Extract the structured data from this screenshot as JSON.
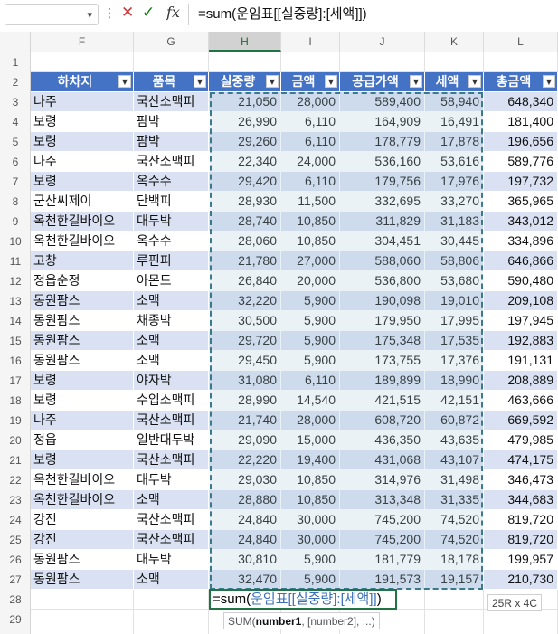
{
  "formula_bar": {
    "namebox_value": "",
    "formula": "=sum(운임표[[실중량]:[세액]])",
    "cancel_icon": "✕",
    "enter_icon": "✓",
    "fx_label": "fx",
    "dots": "⋮"
  },
  "columns": [
    "F",
    "G",
    "H",
    "I",
    "J",
    "K",
    "L"
  ],
  "rows": [
    "1",
    "2",
    "3",
    "4",
    "5",
    "6",
    "7",
    "8",
    "9",
    "10",
    "11",
    "12",
    "13",
    "14",
    "15",
    "16",
    "17",
    "18",
    "19",
    "20",
    "21",
    "22",
    "23",
    "24",
    "25",
    "26",
    "27",
    "28",
    "29"
  ],
  "table": {
    "name": "운임표",
    "headers": [
      "하차지",
      "품목",
      "실중량",
      "금액",
      "공급가액",
      "세액",
      "총금액"
    ],
    "rows": [
      [
        "나주",
        "국산소맥피",
        "21,050",
        "28,000",
        "589,400",
        "58,940",
        "648,340"
      ],
      [
        "보령",
        "팜박",
        "26,990",
        "6,110",
        "164,909",
        "16,491",
        "181,400"
      ],
      [
        "보령",
        "팜박",
        "29,260",
        "6,110",
        "178,779",
        "17,878",
        "196,656"
      ],
      [
        "나주",
        "국산소맥피",
        "22,340",
        "24,000",
        "536,160",
        "53,616",
        "589,776"
      ],
      [
        "보령",
        "옥수수",
        "29,420",
        "6,110",
        "179,756",
        "17,976",
        "197,732"
      ],
      [
        "군산씨제이",
        "단백피",
        "28,930",
        "11,500",
        "332,695",
        "33,270",
        "365,965"
      ],
      [
        "옥천한길바이오",
        "대두박",
        "28,740",
        "10,850",
        "311,829",
        "31,183",
        "343,012"
      ],
      [
        "옥천한길바이오",
        "옥수수",
        "28,060",
        "10,850",
        "304,451",
        "30,445",
        "334,896"
      ],
      [
        "고창",
        "루핀피",
        "21,780",
        "27,000",
        "588,060",
        "58,806",
        "646,866"
      ],
      [
        "정읍순정",
        "아몬드",
        "26,840",
        "20,000",
        "536,800",
        "53,680",
        "590,480"
      ],
      [
        "동원팜스",
        "소맥",
        "32,220",
        "5,900",
        "190,098",
        "19,010",
        "209,108"
      ],
      [
        "동원팜스",
        "채종박",
        "30,500",
        "5,900",
        "179,950",
        "17,995",
        "197,945"
      ],
      [
        "동원팜스",
        "소맥",
        "29,720",
        "5,900",
        "175,348",
        "17,535",
        "192,883"
      ],
      [
        "동원팜스",
        "소맥",
        "29,450",
        "5,900",
        "173,755",
        "17,376",
        "191,131"
      ],
      [
        "보령",
        "야자박",
        "31,080",
        "6,110",
        "189,899",
        "18,990",
        "208,889"
      ],
      [
        "보령",
        "수입소맥피",
        "28,990",
        "14,540",
        "421,515",
        "42,151",
        "463,666"
      ],
      [
        "나주",
        "국산소맥피",
        "21,740",
        "28,000",
        "608,720",
        "60,872",
        "669,592"
      ],
      [
        "정읍",
        "일반대두박",
        "29,090",
        "15,000",
        "436,350",
        "43,635",
        "479,985"
      ],
      [
        "보령",
        "국산소맥피",
        "22,220",
        "19,400",
        "431,068",
        "43,107",
        "474,175"
      ],
      [
        "옥천한길바이오",
        "대두박",
        "29,030",
        "10,850",
        "314,976",
        "31,498",
        "346,473"
      ],
      [
        "옥천한길바이오",
        "소맥",
        "28,880",
        "10,850",
        "313,348",
        "31,335",
        "344,683"
      ],
      [
        "강진",
        "국산소맥피",
        "24,840",
        "30,000",
        "745,200",
        "74,520",
        "819,720"
      ],
      [
        "강진",
        "국산소맥피",
        "24,840",
        "30,000",
        "745,200",
        "74,520",
        "819,720"
      ],
      [
        "동원팜스",
        "대두박",
        "30,810",
        "5,900",
        "181,779",
        "18,178",
        "199,957"
      ],
      [
        "동원팜스",
        "소맥",
        "32,470",
        "5,900",
        "191,573",
        "19,157",
        "210,730"
      ]
    ]
  },
  "edit_cell": {
    "prefix": "=sum(",
    "table_ref": "운임표",
    "range_ref": "[[실중량]:[세액]]",
    "suffix": ")"
  },
  "size_badge": "25R x 4C",
  "tooltip": {
    "fn": "SUM(",
    "arg1": "number1",
    "rest": ", [number2], ...)"
  },
  "colors": {
    "header_bg": "#4472c4",
    "band": "#d9e1f2",
    "edit_border": "#217346",
    "range_border": "#3a7a8c",
    "cancel": "#d13438",
    "enter": "#107c10"
  }
}
